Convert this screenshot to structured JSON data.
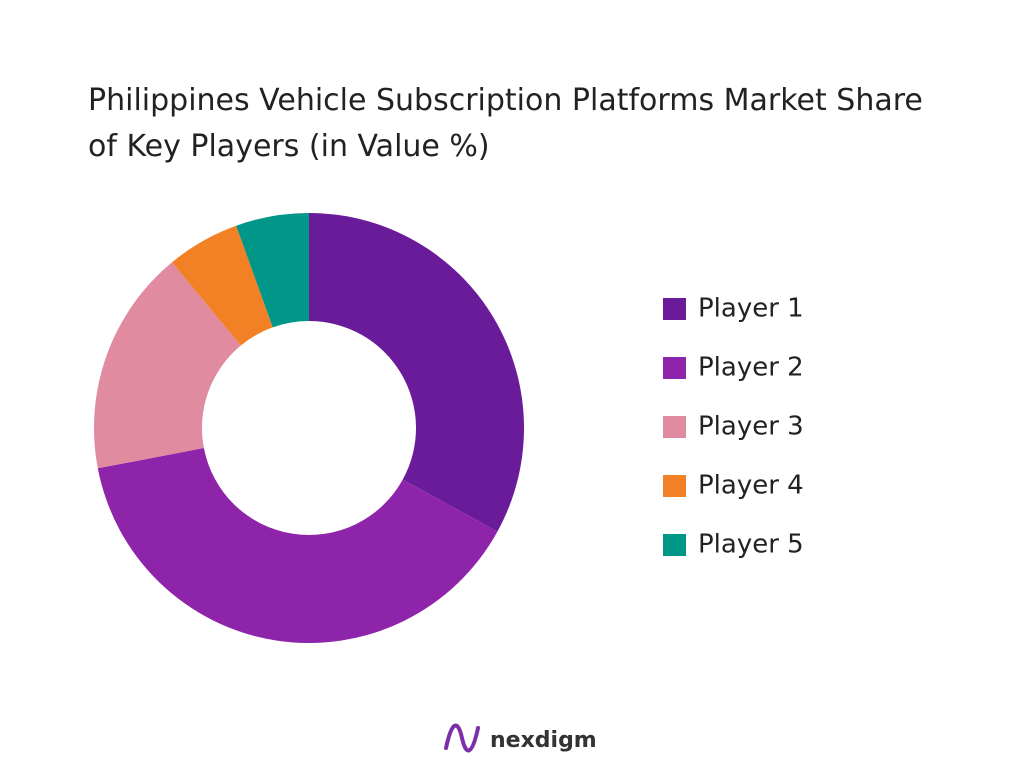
{
  "chart_data": {
    "type": "donut",
    "title": "Philippines Vehicle Subscription Platforms Market Share of Key Players (in Value %)",
    "categories": [
      "Player 1",
      "Player 2",
      "Player 3",
      "Player 4",
      "Player 5"
    ],
    "values": [
      33,
      39,
      17,
      5.5,
      5.5
    ],
    "colors": [
      "#6a1b9a",
      "#8e24aa",
      "#e08ba0",
      "#f28024",
      "#009688"
    ],
    "legend": "right"
  },
  "brand": "nexdigm"
}
